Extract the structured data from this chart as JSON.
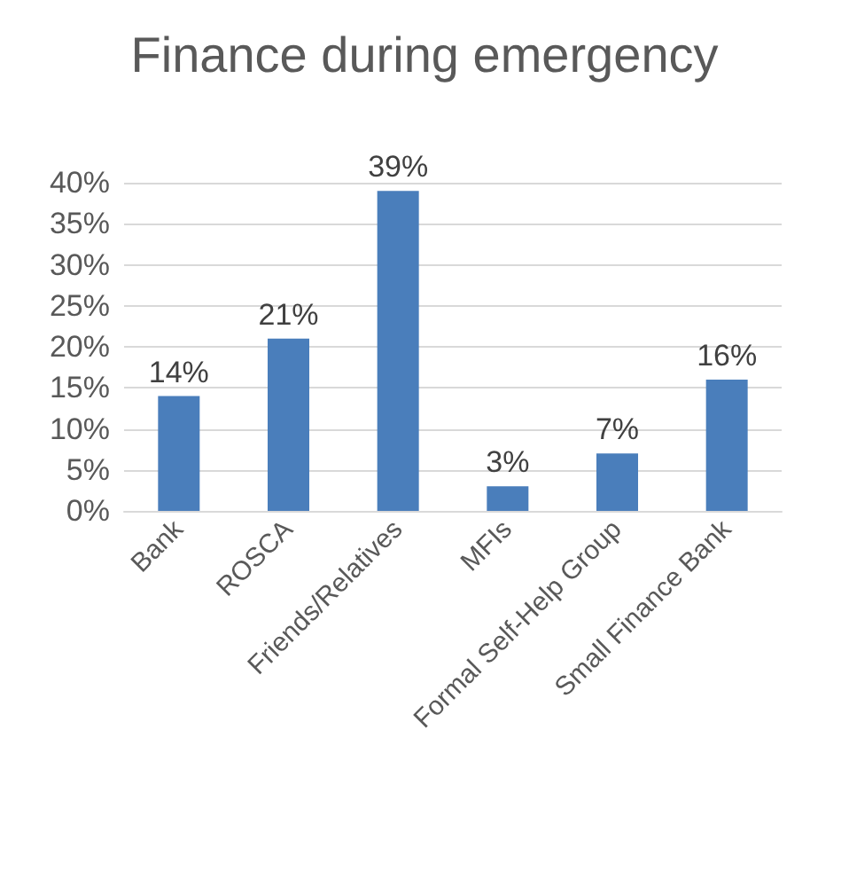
{
  "chart_data": {
    "type": "bar",
    "title": "Finance during emergency",
    "categories": [
      "Bank",
      "ROSCA",
      "Friends/Relatives",
      "MFIs",
      "Formal Self-Help Group",
      "Small Finance Bank"
    ],
    "values": [
      14,
      21,
      39,
      3,
      7,
      16
    ],
    "value_labels": [
      "14%",
      "21%",
      "39%",
      "3%",
      "7%",
      "16%"
    ],
    "color": "#4a7ebb",
    "ylim": [
      0,
      40
    ],
    "yticks": [
      {
        "value": 0,
        "label": "0%"
      },
      {
        "value": 5,
        "label": "5%"
      },
      {
        "value": 10,
        "label": "10%"
      },
      {
        "value": 15,
        "label": "15%"
      },
      {
        "value": 20,
        "label": "20%"
      },
      {
        "value": 25,
        "label": "25%"
      },
      {
        "value": 30,
        "label": "30%"
      },
      {
        "value": 35,
        "label": "35%"
      },
      {
        "value": 40,
        "label": "40%"
      }
    ],
    "grid": "y"
  }
}
